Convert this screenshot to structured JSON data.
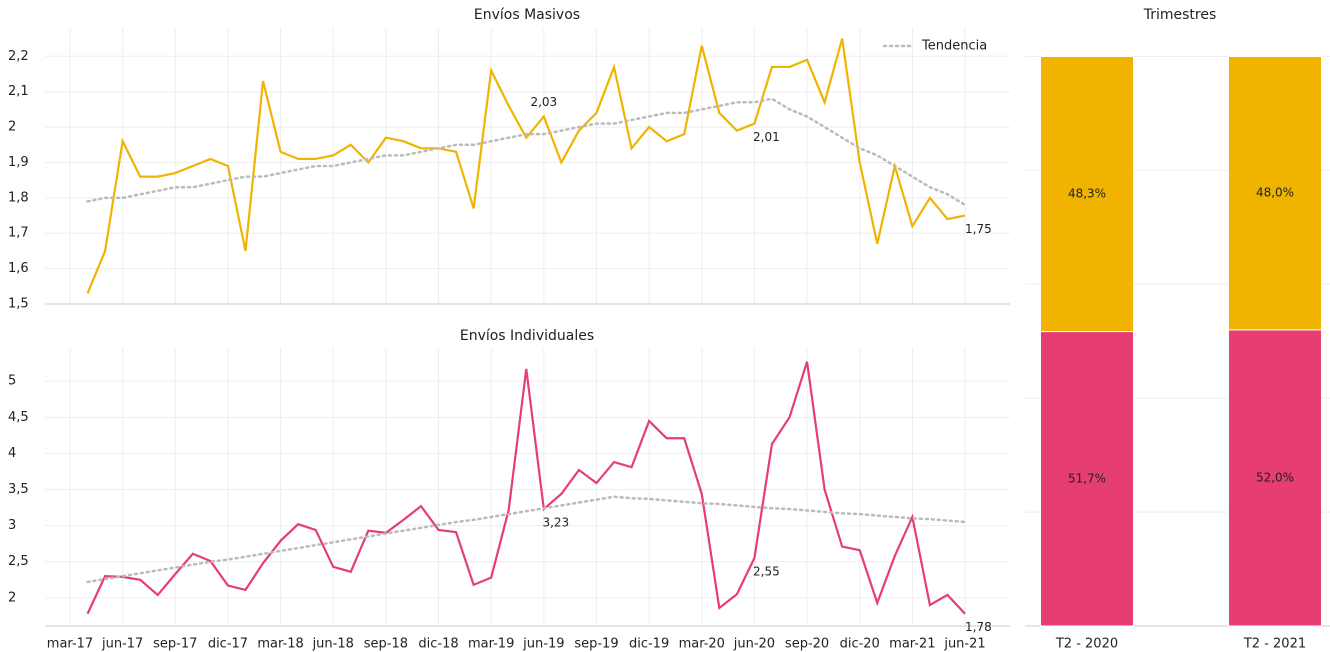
{
  "chart_data": [
    {
      "type": "line",
      "title": "Envíos Masivos",
      "sharex": 1,
      "legend": "upper right",
      "ylim": [
        1.5,
        2.28
      ],
      "grid": true,
      "yticks": [
        {
          "value": 1.5,
          "label": "1,5"
        },
        {
          "value": 1.6,
          "label": "1,6"
        },
        {
          "value": 1.7,
          "label": "1,7"
        },
        {
          "value": 1.8,
          "label": "1,8"
        },
        {
          "value": 1.9,
          "label": "1,9"
        },
        2,
        {
          "value": 2.1,
          "label": "2,1"
        },
        {
          "value": 2.2,
          "label": "2,2"
        }
      ],
      "series": [
        {
          "color": "#f0b400",
          "style": "solid",
          "values": [
            null,
            1.53,
            1.65,
            1.96,
            1.86,
            1.86,
            1.87,
            1.89,
            1.91,
            1.89,
            1.65,
            2.13,
            1.93,
            1.91,
            1.91,
            1.92,
            1.95,
            1.9,
            1.97,
            1.96,
            1.94,
            1.94,
            1.93,
            1.77,
            2.16,
            2.06,
            1.97,
            2.03,
            1.9,
            1.99,
            2.04,
            2.17,
            1.94,
            2.0,
            1.96,
            1.98,
            2.23,
            2.04,
            1.99,
            2.01,
            2.17,
            2.17,
            2.19,
            2.07,
            2.25,
            1.9,
            1.67,
            1.89,
            1.72,
            1.8,
            1.74,
            1.75
          ],
          "value_labels": [
            null,
            null,
            null,
            null,
            null,
            null,
            null,
            null,
            null,
            null,
            null,
            null,
            null,
            null,
            null,
            null,
            null,
            null,
            null,
            null,
            null,
            null,
            null,
            null,
            null,
            null,
            null,
            "2,03",
            null,
            null,
            null,
            null,
            null,
            null,
            null,
            null,
            null,
            null,
            null,
            "2,01",
            null,
            null,
            null,
            null,
            null,
            null,
            null,
            null,
            null,
            null,
            null,
            "1,75"
          ]
        },
        {
          "name": "Tendencia",
          "color": "#bbbbbb",
          "style": "dotted",
          "values": [
            null,
            1.79,
            1.8,
            1.8,
            1.81,
            1.82,
            1.83,
            1.83,
            1.84,
            1.85,
            1.86,
            1.86,
            1.87,
            1.88,
            1.89,
            1.89,
            1.9,
            1.91,
            1.92,
            1.92,
            1.93,
            1.94,
            1.95,
            1.95,
            1.96,
            1.97,
            1.98,
            1.98,
            1.99,
            2.0,
            2.01,
            2.01,
            2.02,
            2.03,
            2.04,
            2.04,
            2.05,
            2.06,
            2.07,
            2.07,
            2.08,
            2.05,
            2.03,
            2.0,
            1.97,
            1.94,
            1.92,
            1.89,
            1.86,
            1.83,
            1.81,
            1.78
          ]
        }
      ]
    },
    {
      "type": "line",
      "title": "Envíos Individuales",
      "categories": [
        "mar-17",
        null,
        null,
        "jun-17",
        null,
        null,
        "sep-17",
        null,
        null,
        "dic-17",
        null,
        null,
        "mar-18",
        null,
        null,
        "jun-18",
        null,
        null,
        "sep-18",
        null,
        null,
        "dic-18",
        null,
        null,
        "mar-19",
        null,
        null,
        "jun-19",
        null,
        null,
        "sep-19",
        null,
        null,
        "dic-19",
        null,
        null,
        "mar-20",
        null,
        null,
        "jun-20",
        null,
        null,
        "sep-20",
        null,
        null,
        "dic-20",
        null,
        null,
        "mar-21",
        null,
        null,
        "jun-21"
      ],
      "ylim": [
        1.61,
        5.46
      ],
      "grid": true,
      "yticks": [
        2,
        {
          "value": 2.5,
          "label": "2,5"
        },
        3,
        {
          "value": 3.5,
          "label": "3,5"
        },
        4,
        {
          "value": 4.5,
          "label": "4,5"
        },
        5
      ],
      "series": [
        {
          "color": "#e63e72",
          "style": "solid",
          "values": [
            null,
            1.78,
            2.3,
            2.29,
            2.25,
            2.04,
            2.33,
            2.61,
            2.51,
            2.17,
            2.11,
            2.48,
            2.79,
            3.02,
            2.94,
            2.43,
            2.36,
            2.93,
            2.9,
            3.08,
            3.27,
            2.94,
            2.91,
            2.18,
            2.28,
            3.22,
            5.17,
            3.23,
            3.44,
            3.77,
            3.59,
            3.88,
            3.81,
            4.45,
            4.21,
            4.21,
            3.44,
            1.86,
            2.05,
            2.55,
            4.13,
            4.5,
            5.27,
            3.5,
            2.71,
            2.66,
            1.93,
            2.58,
            3.12,
            1.9,
            2.04,
            1.78
          ],
          "value_labels": [
            null,
            null,
            null,
            null,
            null,
            null,
            null,
            null,
            null,
            null,
            null,
            null,
            null,
            null,
            null,
            null,
            null,
            null,
            null,
            null,
            null,
            null,
            null,
            null,
            null,
            null,
            null,
            "3,23",
            null,
            null,
            null,
            null,
            null,
            null,
            null,
            null,
            null,
            null,
            null,
            "2,55",
            null,
            null,
            null,
            null,
            null,
            null,
            null,
            null,
            null,
            null,
            null,
            "1,78"
          ]
        },
        {
          "color": "#bbbbbb",
          "style": "dotted",
          "values": [
            null,
            2.22,
            2.26,
            2.3,
            2.34,
            2.38,
            2.42,
            2.46,
            2.5,
            2.53,
            2.57,
            2.61,
            2.65,
            2.69,
            2.73,
            2.77,
            2.81,
            2.85,
            2.89,
            2.93,
            2.97,
            3.01,
            3.05,
            3.08,
            3.12,
            3.16,
            3.2,
            3.24,
            3.28,
            3.32,
            3.36,
            3.4,
            3.38,
            3.37,
            3.35,
            3.33,
            3.31,
            3.3,
            3.28,
            3.26,
            3.24,
            3.23,
            3.21,
            3.19,
            3.17,
            3.16,
            3.14,
            3.12,
            3.1,
            3.09,
            3.07,
            3.05
          ]
        }
      ]
    },
    {
      "type": "stacked-bar",
      "title": "Trimestres",
      "categories": [
        "T2 - 2020",
        "T2 - 2021"
      ],
      "ylim": [
        0,
        105
      ],
      "yticks": [
        0,
        20,
        40,
        60,
        80,
        100
      ],
      "grid": true,
      "series": [
        {
          "color": "#e63e72",
          "values": [
            51.7,
            52.0
          ],
          "value_labels": [
            "51,7%",
            "52,0%"
          ]
        },
        {
          "color": "#f0b400",
          "values": [
            48.3,
            48.0
          ],
          "value_labels": [
            "48,3%",
            "48,0%"
          ]
        }
      ]
    }
  ]
}
